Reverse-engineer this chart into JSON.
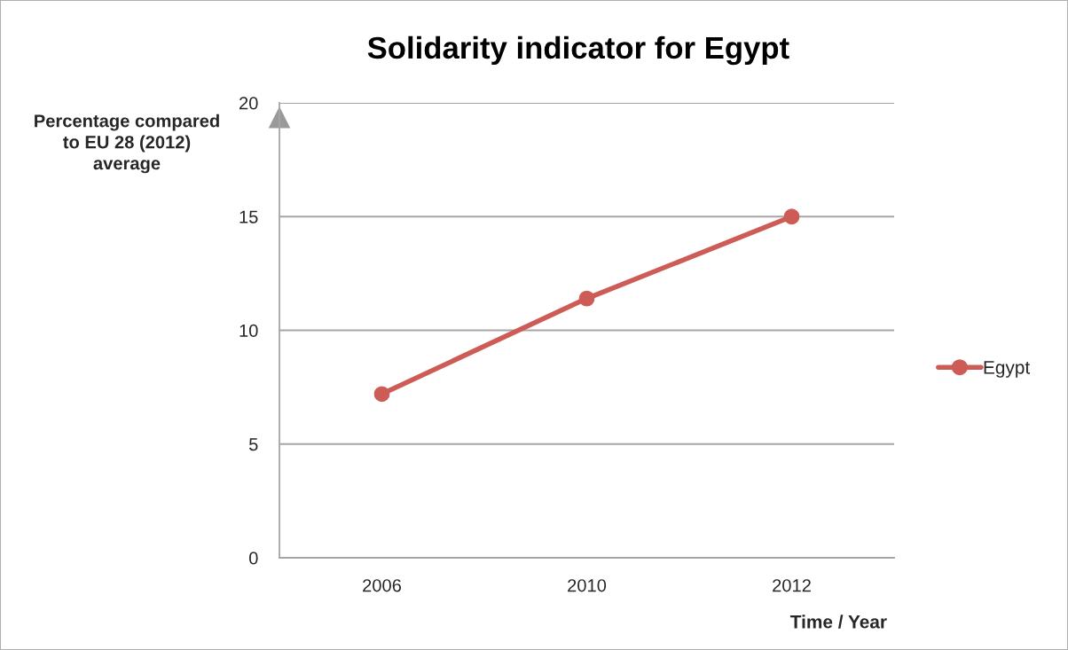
{
  "chart_data": {
    "type": "line",
    "title": "Solidarity indicator for Egypt",
    "xlabel": "Time / Year",
    "ylabel": "Percentage compared\nto EU 28 (2012)\naverage",
    "categories": [
      "2006",
      "2010",
      "2012"
    ],
    "series": [
      {
        "name": "Egypt",
        "color": "#cd5c56",
        "values": [
          7.2,
          11.4,
          15.0
        ]
      }
    ],
    "ylim": [
      0,
      20
    ],
    "yticks": [
      0,
      5,
      10,
      15,
      20
    ],
    "grid": "y",
    "legend": "right",
    "marker": "circle",
    "line_style": "solid"
  }
}
